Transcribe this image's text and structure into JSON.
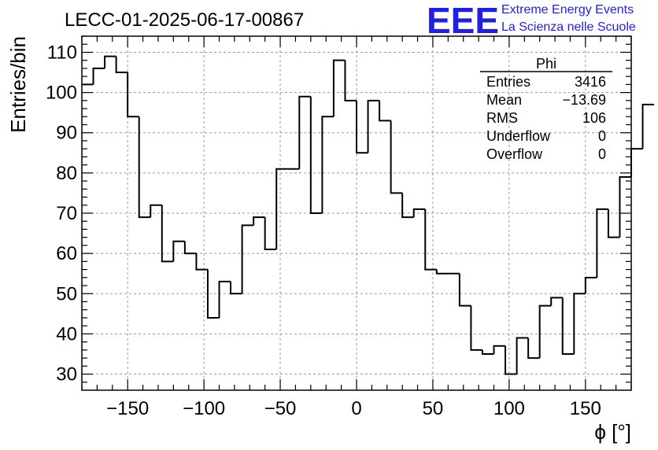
{
  "title": "LECC-01-2025-06-17-00867",
  "logo": {
    "mark": "EEE",
    "line1": "Extreme Energy Events",
    "line2": "La Scienza nelle Scuole",
    "color": "#1f1fe6"
  },
  "stats": {
    "name": "Phi",
    "rows": [
      {
        "label": "Entries",
        "value": "3416"
      },
      {
        "label": "Mean",
        "value": "−13.69"
      },
      {
        "label": "RMS",
        "value": "106"
      },
      {
        "label": "Underflow",
        "value": "0"
      },
      {
        "label": "Overflow",
        "value": "0"
      }
    ]
  },
  "chart_data": {
    "type": "histogram-step",
    "xlabel": "ϕ [°]",
    "ylabel": "Entries/bin",
    "xlim": [
      -180,
      180
    ],
    "ylim": [
      26,
      114
    ],
    "bin_edges_start": -180,
    "bin_width": 7.5,
    "values": [
      102,
      106,
      109,
      105,
      94,
      69,
      72,
      58,
      63,
      60,
      56,
      44,
      53,
      50,
      67,
      69,
      61,
      81,
      81,
      99,
      70,
      94,
      108,
      98,
      85,
      98,
      93,
      75,
      69,
      71,
      56,
      55,
      55,
      47,
      36,
      35,
      37,
      30,
      39,
      34,
      47,
      49,
      35,
      50,
      54,
      71,
      64,
      79,
      86,
      97
    ],
    "xticks": [
      -150,
      -100,
      -50,
      0,
      50,
      100,
      150
    ],
    "xtick_labels": [
      "−150",
      "−100",
      "−50",
      "0",
      "50",
      "100",
      "150"
    ],
    "yticks": [
      30,
      40,
      50,
      60,
      70,
      80,
      90,
      100,
      110
    ],
    "ytick_labels": [
      "30",
      "40",
      "50",
      "60",
      "70",
      "80",
      "90",
      "100",
      "110"
    ],
    "grid": true,
    "line_color": "#000000"
  }
}
